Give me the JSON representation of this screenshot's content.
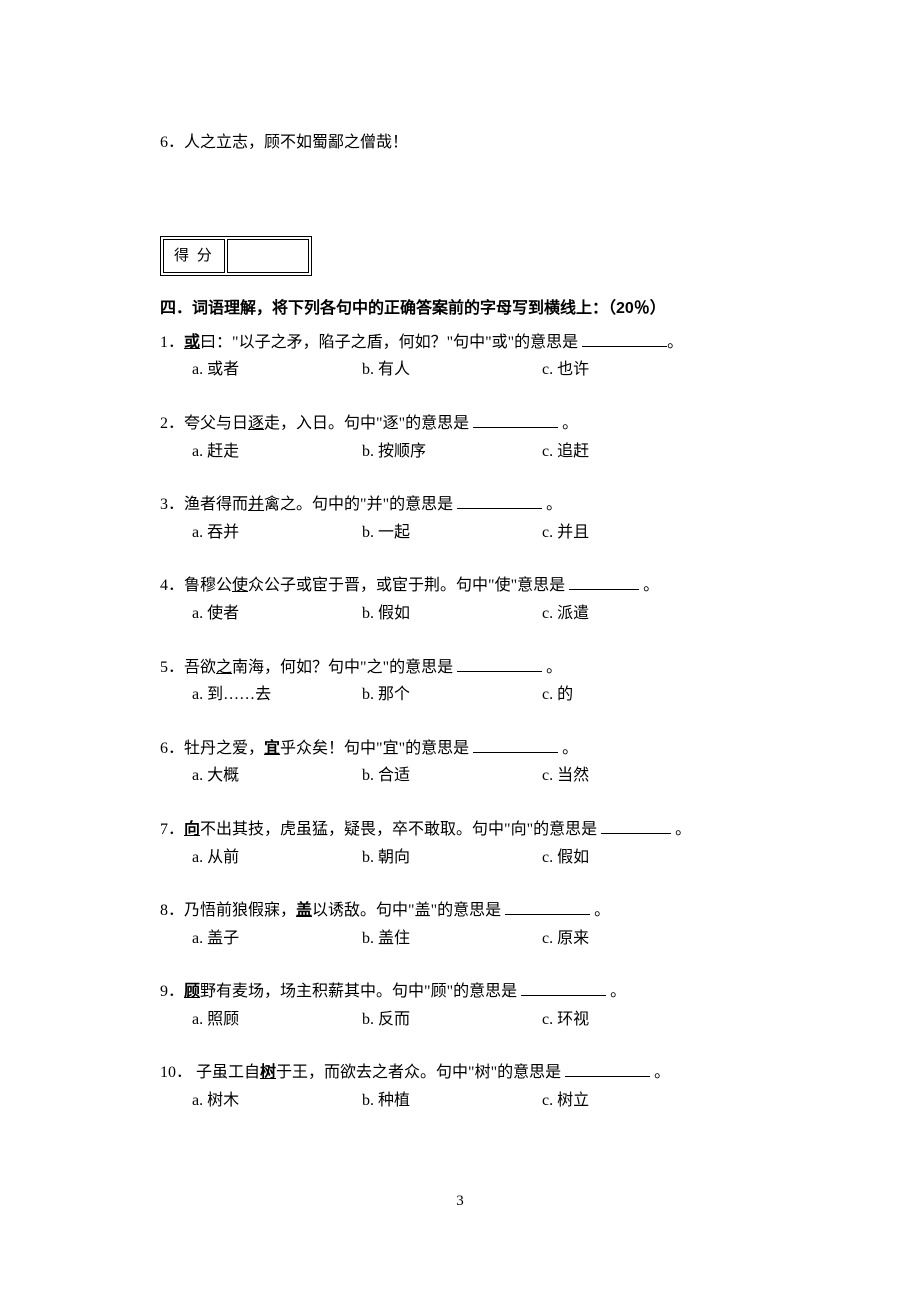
{
  "top_line": "6．人之立志，顾不如蜀鄙之僧哉！",
  "score_label": "得 分",
  "section_title": "四．词语理解，将下列各句中的正确答案前的字母写到横线上：（20％）",
  "questions": [
    {
      "num": "1．",
      "pre": "",
      "key": "或",
      "key_class": "bold-underline",
      "post": "曰：\"以子之矛，陷子之盾，何如？\"句中\"或\"的意思是 ",
      "blank": "blank-med",
      "tail": "。",
      "opts": {
        "a": "a. 或者",
        "b": "b. 有人",
        "c": "c. 也许"
      }
    },
    {
      "num": "2．",
      "pre": "夸父与日",
      "key": "逐",
      "key_class": "underline",
      "post": "走，入日。句中\"逐\"的意思是 ",
      "blank": "blank-med",
      "tail": " 。",
      "opts": {
        "a": "a. 赶走",
        "b": "b. 按顺序",
        "c": "c. 追赶"
      }
    },
    {
      "num": "3．",
      "pre": "渔者得而",
      "key": "并",
      "key_class": "underline",
      "post": "禽之。句中的\"并\"的意思是 ",
      "blank": "blank-med",
      "tail": " 。",
      "opts": {
        "a": "a. 吞并",
        "b": "b. 一起",
        "c": "c. 并且"
      }
    },
    {
      "num": "4．",
      "pre": "鲁穆公",
      "key": "使",
      "key_class": "underline",
      "post": "众公子或宦于晋，或宦于荆。句中\"使\"意思是 ",
      "blank": "blank-short",
      "tail": " 。",
      "opts": {
        "a": "a. 使者",
        "b": "b. 假如",
        "c": "c. 派遣"
      }
    },
    {
      "num": "5．",
      "pre": "吾欲",
      "key": "之",
      "key_class": "underline",
      "post": "南海，何如？句中\"之\"的意思是 ",
      "blank": "blank-med",
      "tail": " 。",
      "opts": {
        "a": "a. 到……去",
        "b": "b. 那个",
        "c": "c. 的"
      }
    },
    {
      "num": "6．",
      "pre": "牡丹之爱，",
      "key": "宜",
      "key_class": "bold-underline",
      "post": "乎众矣！句中\"宜\"的意思是 ",
      "blank": "blank-med",
      "tail": " 。",
      "opts": {
        "a": "a. 大概",
        "b": "b. 合适",
        "c": "c. 当然"
      }
    },
    {
      "num": "7．",
      "pre": "",
      "key": "向",
      "key_class": "bold-underline",
      "post": "不出其技，虎虽猛，疑畏，卒不敢取。句中\"向\"的意思是 ",
      "blank": "blank-short",
      "tail": " 。",
      "opts": {
        "a": "a. 从前",
        "b": "b. 朝向",
        "c": "c. 假如"
      }
    },
    {
      "num": "8．",
      "pre": "乃悟前狼假寐，",
      "key": "盖",
      "key_class": "bold-underline",
      "post": "以诱敌。句中\"盖\"的意思是 ",
      "blank": "blank-med",
      "tail": " 。",
      "opts": {
        "a": "a. 盖子",
        "b": "b. 盖住",
        "c": "c. 原来"
      }
    },
    {
      "num": "9．",
      "pre": "",
      "key": "顾",
      "key_class": "bold-underline",
      "post": "野有麦场，场主积薪其中。句中\"顾\"的意思是 ",
      "blank": "blank-med",
      "tail": " 。",
      "opts": {
        "a": "a. 照顾",
        "b": "b. 反而",
        "c": "c. 环视"
      }
    },
    {
      "num": "10．",
      "pre": " 子虽工自",
      "key": "树",
      "key_class": "bold-underline",
      "post": "于王，而欲去之者众。句中\"树\"的意思是 ",
      "blank": "blank-med",
      "tail": " 。",
      "opts": {
        "a": "a. 树木",
        "b": "b. 种植",
        "c": "c. 树立"
      }
    }
  ],
  "page_number": "3"
}
